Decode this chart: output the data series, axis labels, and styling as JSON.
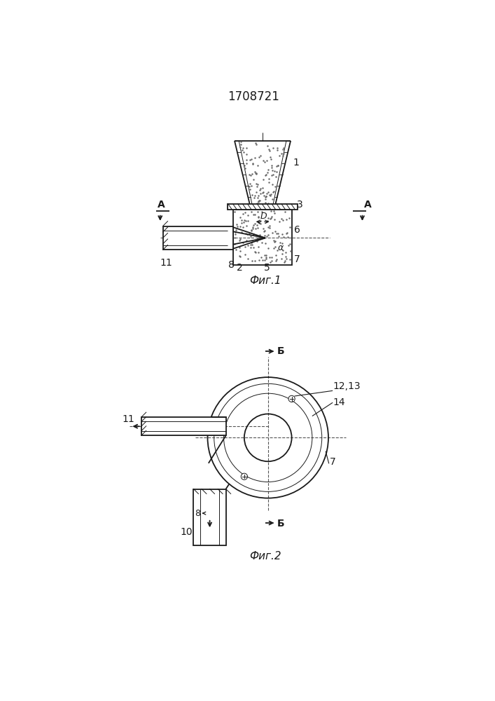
{
  "title": "1708721",
  "fig1_label": "Фиг.1",
  "fig2_label": "Фиг.2",
  "bg_color": "#ffffff",
  "line_color": "#1a1a1a",
  "dot_color": "#555555"
}
